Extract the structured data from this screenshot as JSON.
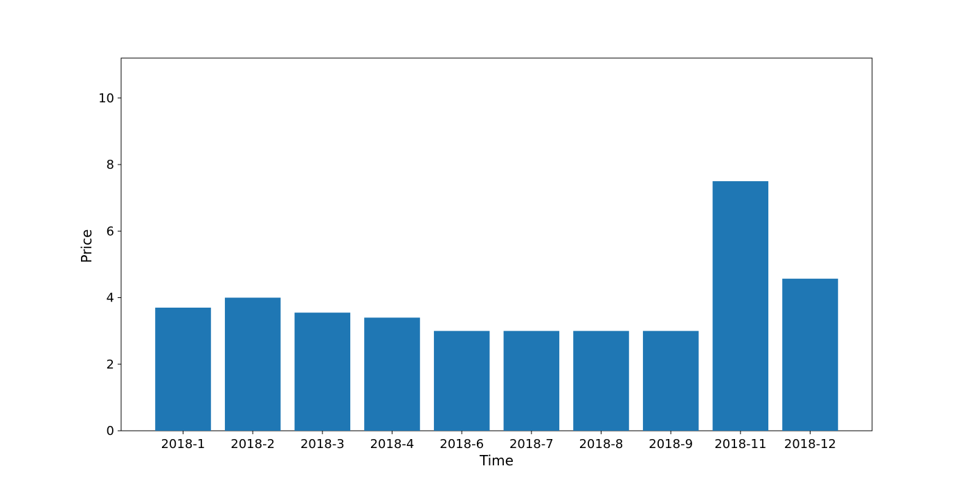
{
  "chart_data": {
    "type": "bar",
    "title": "",
    "xlabel": "Time",
    "ylabel": "Price",
    "categories": [
      "2018-1",
      "2018-2",
      "2018-3",
      "2018-4",
      "2018-6",
      "2018-7",
      "2018-8",
      "2018-9",
      "2018-11",
      "2018-12"
    ],
    "values": [
      3.7,
      4.0,
      3.55,
      3.4,
      3.0,
      3.0,
      3.0,
      3.0,
      7.5,
      4.57
    ],
    "ylim": [
      0,
      11.2
    ],
    "yticks": [
      0,
      2,
      4,
      6,
      8,
      10
    ],
    "grid": false,
    "legend": "none",
    "bar_color": "#1f77b4"
  }
}
